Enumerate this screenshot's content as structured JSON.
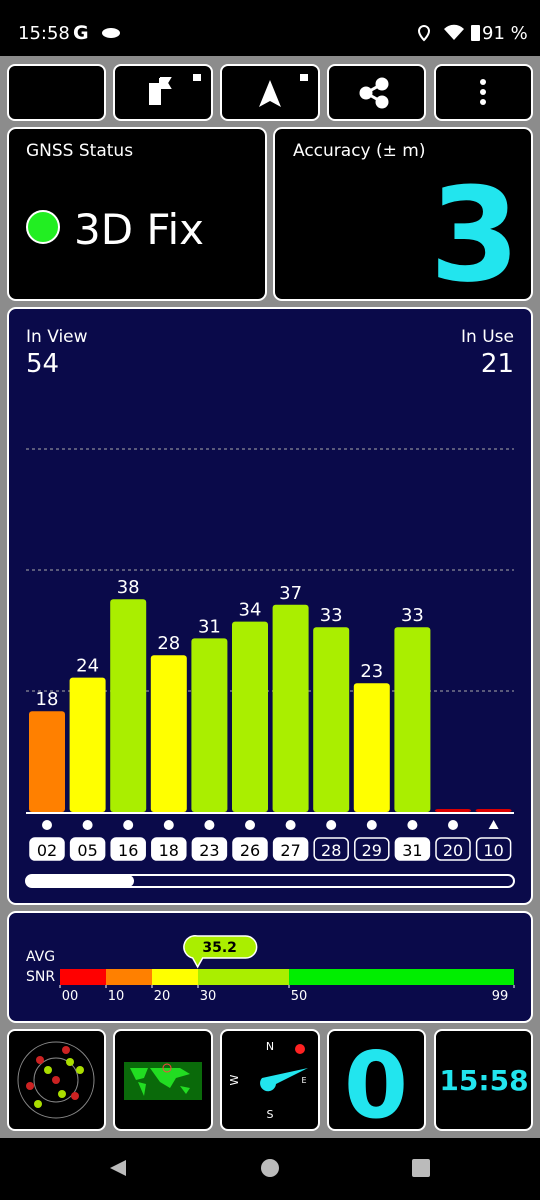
{
  "status_bar": {
    "time": "15:58",
    "carrier": "G",
    "battery": "91 %"
  },
  "gnss_status": {
    "label": "GNSS Status",
    "fix": "3D Fix"
  },
  "accuracy": {
    "label": "Accuracy (± m)",
    "value": 3
  },
  "satellites": {
    "in_view_label": "In View",
    "in_view": 54,
    "in_use_label": "In Use",
    "in_use": 21,
    "bars": [
      {
        "id": "02",
        "snr": 18,
        "color": "#ff8000",
        "used": true,
        "marker": "dot"
      },
      {
        "id": "05",
        "snr": 24,
        "color": "#ffff00",
        "used": true,
        "marker": "dot"
      },
      {
        "id": "16",
        "snr": 38,
        "color": "#aaee00",
        "used": true,
        "marker": "dot"
      },
      {
        "id": "18",
        "snr": 28,
        "color": "#ffff00",
        "used": true,
        "marker": "dot"
      },
      {
        "id": "23",
        "snr": 31,
        "color": "#aaee00",
        "used": true,
        "marker": "dot"
      },
      {
        "id": "26",
        "snr": 34,
        "color": "#aaee00",
        "used": true,
        "marker": "dot"
      },
      {
        "id": "27",
        "snr": 37,
        "color": "#aaee00",
        "used": true,
        "marker": "dot"
      },
      {
        "id": "28",
        "snr": 33,
        "color": "#aaee00",
        "used": false,
        "marker": "dot"
      },
      {
        "id": "29",
        "snr": 23,
        "color": "#ffff00",
        "used": false,
        "marker": "dot"
      },
      {
        "id": "31",
        "snr": 33,
        "color": "#aaee00",
        "used": true,
        "marker": "dot"
      },
      {
        "id": "20",
        "snr": 0,
        "color": "#dd0000",
        "used": false,
        "marker": "dot"
      },
      {
        "id": "10",
        "snr": 0,
        "color": "#dd0000",
        "used": false,
        "marker": "triangle"
      }
    ]
  },
  "snr": {
    "avg_label": "AVG",
    "snr_label": "SNR",
    "average": 35.2,
    "ticks": [
      {
        "value": 0,
        "label": "00"
      },
      10,
      20,
      30,
      50,
      99
    ],
    "colors": [
      "#ff0000",
      "#ff8000",
      "#ffff00",
      "#aaee00",
      "#00ee00"
    ]
  },
  "tiles": {
    "satellites_used": 0,
    "time": "15:58",
    "compass": {
      "n": "N",
      "e": "E",
      "s": "S",
      "w": "W"
    }
  }
}
